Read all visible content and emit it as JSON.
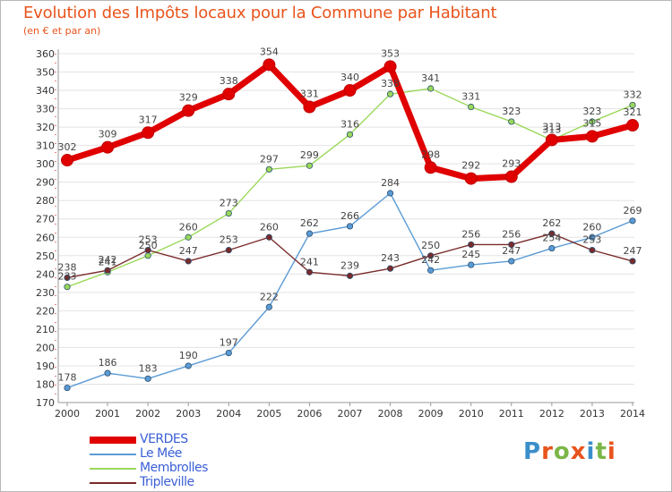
{
  "header": {
    "title": "Evolution des Impôts locaux pour la Commune par Habitant",
    "subtitle": "(en € et par an)"
  },
  "logo": {
    "text": "Proxiti",
    "colors": [
      "#3a8ec9",
      "#e8541c",
      "#7ab648",
      "#e8541c",
      "#3a8ec9",
      "#7ab648",
      "#e8541c"
    ]
  },
  "chart_data": {
    "type": "line",
    "title": "Evolution des Impôts locaux pour la Commune par Habitant",
    "subtitle": "(en € et par an)",
    "x": [
      "2000",
      "2001",
      "2002",
      "2003",
      "2004",
      "2005",
      "2006",
      "2007",
      "2008",
      "2009",
      "2010",
      "2011",
      "2012",
      "2013",
      "2014"
    ],
    "ylim": [
      170,
      360
    ],
    "yticks": [
      170,
      180,
      190,
      200,
      210,
      220,
      230,
      240,
      250,
      260,
      270,
      280,
      290,
      300,
      310,
      320,
      330,
      340,
      350,
      360
    ],
    "grid": "horizontal",
    "legend_position": "bottom-left",
    "series": [
      {
        "name": "VERDES",
        "color": "#e00000",
        "emphasis": true,
        "values": [
          302,
          309,
          317,
          329,
          338,
          354,
          331,
          340,
          353,
          298,
          292,
          293,
          313,
          315,
          321
        ]
      },
      {
        "name": "Le Mée",
        "color": "#5b9bd5",
        "emphasis": false,
        "values": [
          178,
          186,
          183,
          190,
          197,
          222,
          262,
          266,
          284,
          242,
          245,
          247,
          254,
          260,
          269
        ]
      },
      {
        "name": "Membrolles",
        "color": "#9bd85a",
        "emphasis": false,
        "values": [
          233,
          241,
          250,
          260,
          273,
          297,
          299,
          316,
          338,
          341,
          331,
          323,
          313,
          323,
          332
        ]
      },
      {
        "name": "Tripleville",
        "color": "#7a2a2a",
        "emphasis": false,
        "values": [
          238,
          242,
          253,
          247,
          253,
          260,
          241,
          239,
          243,
          250,
          256,
          256,
          262,
          253,
          247
        ]
      }
    ]
  }
}
